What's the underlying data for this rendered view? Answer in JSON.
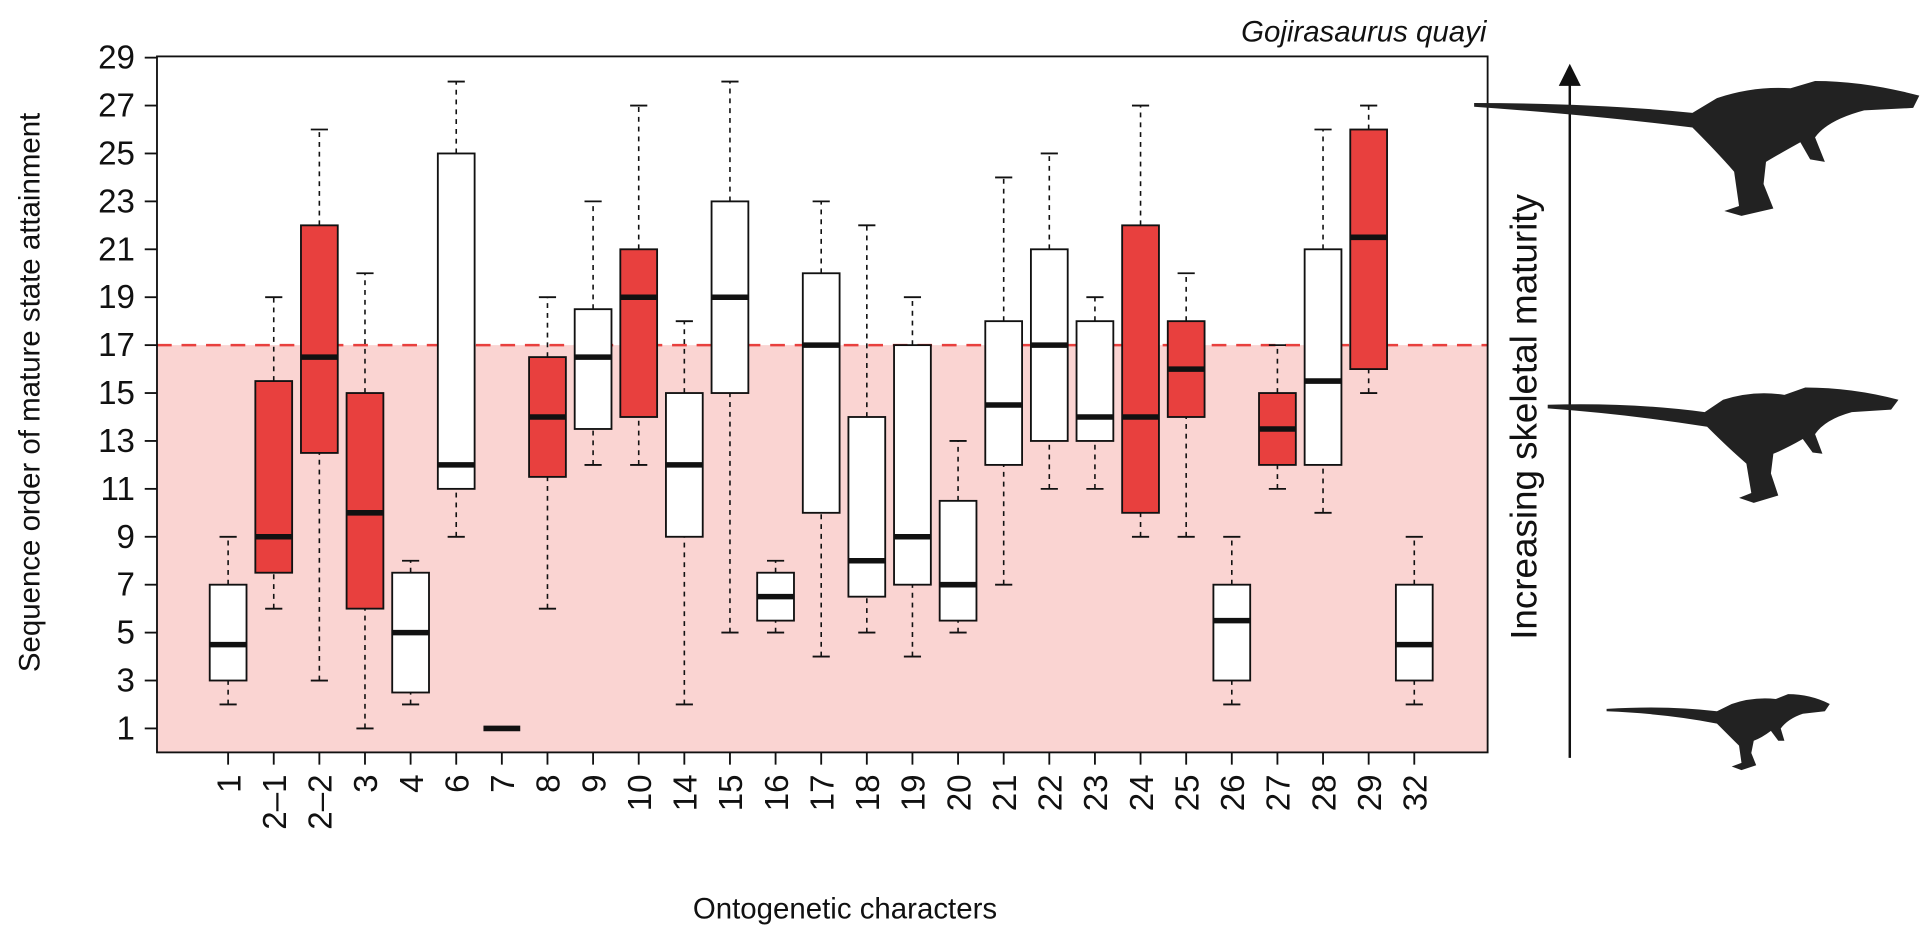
{
  "chart_data": {
    "type": "box",
    "title": "Gojirasaurus quayi",
    "y_label": "Sequence order of mature state attainment",
    "x_label": "Ontogenetic characters",
    "side_label": "Increasing skeletal maturity",
    "categories": [
      "1",
      "2–1",
      "2–2",
      "3",
      "4",
      "6",
      "7",
      "8",
      "9",
      "10",
      "14",
      "15",
      "16",
      "17",
      "18",
      "19",
      "20",
      "21",
      "22",
      "23",
      "24",
      "25",
      "26",
      "27",
      "28",
      "29",
      "32"
    ],
    "min": [
      2,
      6,
      3,
      1,
      2,
      9,
      1,
      6,
      12,
      12,
      2,
      5,
      5,
      4,
      5,
      4,
      5,
      7,
      11,
      11,
      9,
      9,
      2,
      11,
      10,
      15,
      2
    ],
    "q1": [
      3,
      7.5,
      12.5,
      6,
      2.5,
      11,
      1,
      11.5,
      13.5,
      14,
      9,
      15,
      5.5,
      10,
      6.5,
      7,
      5.5,
      12,
      13,
      13,
      10,
      14,
      3,
      12,
      12,
      16,
      3
    ],
    "median": [
      4.5,
      9,
      16.5,
      10,
      5,
      12,
      1,
      14,
      16.5,
      19,
      12,
      19,
      6.5,
      17,
      8,
      9,
      7,
      14.5,
      17,
      14,
      14,
      16,
      5.5,
      13.5,
      15.5,
      21.5,
      4.5
    ],
    "q3": [
      7,
      15.5,
      22,
      15,
      7.5,
      25,
      1,
      16.5,
      18.5,
      21,
      15,
      23,
      7.5,
      20,
      14,
      17,
      10.5,
      18,
      21,
      18,
      22,
      18,
      7,
      15,
      21,
      26,
      7
    ],
    "max": [
      9,
      19,
      26,
      20,
      8,
      28,
      1,
      19,
      23,
      27,
      18,
      28,
      8,
      23,
      22,
      19,
      13,
      24,
      25,
      19,
      27,
      20,
      9,
      17,
      26,
      27,
      9
    ],
    "colors": [
      "#ffffff",
      "#e8403e",
      "#e8403e",
      "#e8403e",
      "#ffffff",
      "#ffffff",
      "#ffffff",
      "#e8403e",
      "#ffffff",
      "#e8403e",
      "#ffffff",
      "#ffffff",
      "#ffffff",
      "#ffffff",
      "#ffffff",
      "#ffffff",
      "#ffffff",
      "#ffffff",
      "#ffffff",
      "#ffffff",
      "#e8403e",
      "#e8403e",
      "#ffffff",
      "#e8403e",
      "#ffffff",
      "#e8403e",
      "#ffffff"
    ],
    "threshold": 17,
    "threshold_color": "#e8403e",
    "shade_color": "#fad4d2",
    "ylim": [
      0,
      29
    ],
    "yticks": [
      1,
      3,
      5,
      7,
      9,
      11,
      13,
      15,
      17,
      19,
      21,
      23,
      25,
      27,
      29
    ]
  }
}
